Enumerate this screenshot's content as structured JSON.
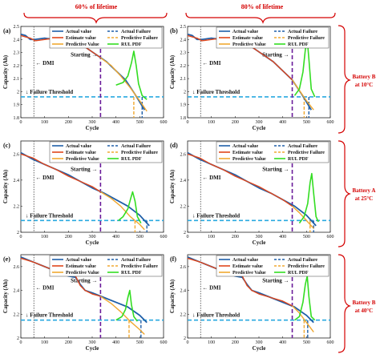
{
  "header": {
    "left": "60% of lifetime",
    "right": "80% of lifetime"
  },
  "batteries": [
    {
      "label_line1": "Battery B",
      "label_line2": "at 10°C"
    },
    {
      "label_line1": "Battery A",
      "label_line2": "at 25°C"
    },
    {
      "label_line1": "Battery B",
      "label_line2": "at 40°C"
    }
  ],
  "legend": {
    "actual": "Actual value",
    "actual_failure": "Actual Failure",
    "estimate": "Estimate value",
    "predictive_failure": "Predictive Failure",
    "predictive": "Predictive Value",
    "rul_pdf": "RUL PDF"
  },
  "annotations": {
    "dmi": "← DMI",
    "starting": "Starting →",
    "threshold": "↓ Failure Threshold"
  },
  "colors": {
    "actual": "#1f5fa8",
    "estimate": "#e0461b",
    "predictive": "#f0a830",
    "pdf": "#33dd22",
    "threshold": "#29a9e0",
    "starting": "#6a1b9a",
    "dmi": "#666666",
    "red_label": "#d40000"
  },
  "chart_data": [
    {
      "panel": "(a)",
      "type": "line",
      "xlabel": "Cycle",
      "ylabel": "Capacity (Ah)",
      "xlim": [
        0,
        600
      ],
      "ylim": [
        1.8,
        2.5
      ],
      "xticks": [
        0,
        100,
        200,
        300,
        400,
        500,
        600
      ],
      "yticks": [
        1.8,
        1.9,
        2.0,
        2.1,
        2.2,
        2.3,
        2.4,
        2.5
      ],
      "dmi": 55,
      "starting": 335,
      "threshold": 1.96,
      "actual_failure": 510,
      "predictive_failure": 475,
      "actual": {
        "x": [
          0,
          20,
          40,
          60,
          100,
          140,
          180,
          200,
          220,
          250,
          280,
          320,
          360,
          400,
          440,
          480,
          520
        ],
        "y": [
          2.44,
          2.43,
          2.4,
          2.4,
          2.41,
          2.4,
          2.38,
          2.39,
          2.39,
          2.37,
          2.33,
          2.28,
          2.23,
          2.16,
          2.09,
          1.98,
          1.86
        ]
      },
      "estimate": {
        "x": [
          0,
          20,
          40,
          60,
          100,
          140,
          180,
          200,
          220,
          250,
          280,
          320,
          335
        ],
        "y": [
          2.43,
          2.42,
          2.41,
          2.39,
          2.4,
          2.41,
          2.38,
          2.4,
          2.38,
          2.37,
          2.33,
          2.28,
          2.26
        ]
      },
      "predictive": {
        "x": [
          335,
          380,
          420,
          460,
          500,
          530
        ],
        "y": [
          2.26,
          2.2,
          2.12,
          2.03,
          1.93,
          1.85
        ]
      },
      "pdf": {
        "x": [
          400,
          430,
          450,
          465,
          475,
          485,
          495,
          510,
          530
        ],
        "y": [
          2.05,
          2.07,
          2.12,
          2.22,
          2.31,
          2.2,
          2.06,
          1.97,
          1.94
        ]
      }
    },
    {
      "panel": "(b)",
      "type": "line",
      "xlabel": "Cycle",
      "ylabel": "Capacity (Ah)",
      "xlim": [
        0,
        600
      ],
      "ylim": [
        1.8,
        2.5
      ],
      "xticks": [
        0,
        100,
        200,
        300,
        400,
        500,
        600
      ],
      "yticks": [
        1.8,
        1.9,
        2.0,
        2.1,
        2.2,
        2.3,
        2.4,
        2.5
      ],
      "dmi": 55,
      "starting": 440,
      "threshold": 1.96,
      "actual_failure": 510,
      "predictive_failure": 490,
      "actual": {
        "x": [
          0,
          20,
          40,
          60,
          100,
          140,
          180,
          200,
          220,
          250,
          280,
          320,
          360,
          400,
          440,
          480,
          520
        ],
        "y": [
          2.44,
          2.43,
          2.4,
          2.4,
          2.41,
          2.4,
          2.38,
          2.39,
          2.39,
          2.37,
          2.33,
          2.28,
          2.23,
          2.16,
          2.09,
          1.98,
          1.86
        ]
      },
      "estimate": {
        "x": [
          0,
          20,
          40,
          60,
          100,
          140,
          180,
          200,
          220,
          250,
          280,
          320,
          360,
          400,
          440
        ],
        "y": [
          2.43,
          2.42,
          2.41,
          2.39,
          2.4,
          2.41,
          2.38,
          2.4,
          2.38,
          2.37,
          2.33,
          2.28,
          2.23,
          2.16,
          2.09
        ]
      },
      "predictive": {
        "x": [
          440,
          470,
          500,
          530
        ],
        "y": [
          2.09,
          2.01,
          1.93,
          1.86
        ]
      },
      "pdf": {
        "x": [
          450,
          470,
          485,
          495,
          503,
          510,
          520,
          535
        ],
        "y": [
          1.97,
          2.02,
          2.15,
          2.32,
          2.4,
          2.25,
          2.02,
          1.96
        ]
      }
    },
    {
      "panel": "(c)",
      "type": "line",
      "xlabel": "Cycle",
      "ylabel": "Capacity (Ah)",
      "xlim": [
        0,
        600
      ],
      "ylim": [
        2.0,
        2.7
      ],
      "xticks": [
        0,
        100,
        200,
        300,
        400,
        500,
        600
      ],
      "yticks": [
        2.0,
        2.2,
        2.4,
        2.6
      ],
      "dmi": 55,
      "starting": 335,
      "threshold": 2.09,
      "actual_failure": 530,
      "predictive_failure": 480,
      "actual": {
        "x": [
          0,
          50,
          100,
          150,
          200,
          250,
          300,
          350,
          400,
          450,
          500,
          540
        ],
        "y": [
          2.61,
          2.56,
          2.52,
          2.48,
          2.44,
          2.39,
          2.34,
          2.3,
          2.25,
          2.2,
          2.13,
          2.05
        ]
      },
      "estimate": {
        "x": [
          0,
          50,
          100,
          150,
          200,
          250,
          300,
          335
        ],
        "y": [
          2.6,
          2.57,
          2.52,
          2.48,
          2.43,
          2.39,
          2.35,
          2.31
        ]
      },
      "predictive": {
        "x": [
          335,
          380,
          420,
          460,
          500,
          520
        ],
        "y": [
          2.31,
          2.26,
          2.2,
          2.12,
          2.06,
          2.02
        ]
      },
      "pdf": {
        "x": [
          410,
          430,
          450,
          462,
          470,
          480,
          490,
          505
        ],
        "y": [
          2.09,
          2.12,
          2.18,
          2.26,
          2.31,
          2.24,
          2.12,
          2.07
        ]
      }
    },
    {
      "panel": "(d)",
      "type": "line",
      "xlabel": "Cycle",
      "ylabel": "Capacity (Ah)",
      "xlim": [
        0,
        600
      ],
      "ylim": [
        2.0,
        2.7
      ],
      "xticks": [
        0,
        100,
        200,
        300,
        400,
        500,
        600
      ],
      "yticks": [
        2.0,
        2.2,
        2.4,
        2.6
      ],
      "dmi": 55,
      "starting": 440,
      "threshold": 2.09,
      "actual_failure": 530,
      "predictive_failure": 515,
      "actual": {
        "x": [
          0,
          50,
          100,
          150,
          200,
          250,
          300,
          350,
          400,
          450,
          500,
          540
        ],
        "y": [
          2.61,
          2.56,
          2.52,
          2.48,
          2.44,
          2.39,
          2.34,
          2.3,
          2.25,
          2.2,
          2.13,
          2.05
        ]
      },
      "estimate": {
        "x": [
          0,
          50,
          100,
          150,
          200,
          250,
          300,
          350,
          400,
          440
        ],
        "y": [
          2.6,
          2.57,
          2.52,
          2.48,
          2.43,
          2.39,
          2.35,
          2.3,
          2.25,
          2.2
        ]
      },
      "predictive": {
        "x": [
          440,
          470,
          500,
          530
        ],
        "y": [
          2.2,
          2.15,
          2.09,
          2.03
        ]
      },
      "pdf": {
        "x": [
          470,
          490,
          505,
          515,
          522,
          530,
          540,
          550
        ],
        "y": [
          2.07,
          2.12,
          2.22,
          2.38,
          2.45,
          2.3,
          2.12,
          2.08
        ]
      }
    },
    {
      "panel": "(e)",
      "type": "line",
      "xlabel": "Cycle",
      "ylabel": "Capacity (Ah)",
      "xlim": [
        0,
        600
      ],
      "ylim": [
        2.0,
        2.7
      ],
      "xticks": [
        0,
        100,
        200,
        300,
        400,
        500,
        600
      ],
      "yticks": [
        2.0,
        2.2,
        2.4,
        2.6
      ],
      "dmi": 55,
      "starting": 335,
      "threshold": 2.15,
      "actual_failure": 505,
      "predictive_failure": 455,
      "actual": {
        "x": [
          0,
          50,
          100,
          150,
          200,
          230,
          250,
          270,
          300,
          350,
          400,
          450,
          500,
          530
        ],
        "y": [
          2.68,
          2.64,
          2.6,
          2.56,
          2.52,
          2.51,
          2.45,
          2.4,
          2.38,
          2.34,
          2.3,
          2.26,
          2.19,
          2.13
        ]
      },
      "estimate": {
        "x": [
          0,
          50,
          100,
          150,
          200,
          230,
          250,
          270,
          300,
          335
        ],
        "y": [
          2.67,
          2.64,
          2.6,
          2.56,
          2.53,
          2.52,
          2.44,
          2.4,
          2.37,
          2.35
        ]
      },
      "predictive": {
        "x": [
          335,
          380,
          420,
          460,
          500,
          520
        ],
        "y": [
          2.35,
          2.29,
          2.22,
          2.14,
          2.07,
          2.03
        ]
      },
      "pdf": {
        "x": [
          400,
          425,
          440,
          450,
          458,
          465,
          475,
          490
        ],
        "y": [
          2.15,
          2.18,
          2.24,
          2.34,
          2.4,
          2.28,
          2.18,
          2.14
        ]
      }
    },
    {
      "panel": "(f)",
      "type": "line",
      "xlabel": "Cycle",
      "ylabel": "Capacity (Ah)",
      "xlim": [
        0,
        600
      ],
      "ylim": [
        2.0,
        2.7
      ],
      "xticks": [
        0,
        100,
        200,
        300,
        400,
        500,
        600
      ],
      "yticks": [
        2.0,
        2.2,
        2.4,
        2.6
      ],
      "dmi": 55,
      "starting": 440,
      "threshold": 2.15,
      "actual_failure": 505,
      "predictive_failure": 490,
      "actual": {
        "x": [
          0,
          50,
          100,
          150,
          200,
          230,
          250,
          270,
          300,
          350,
          400,
          450,
          500,
          530
        ],
        "y": [
          2.68,
          2.64,
          2.6,
          2.56,
          2.52,
          2.51,
          2.45,
          2.4,
          2.38,
          2.34,
          2.3,
          2.26,
          2.19,
          2.13
        ]
      },
      "estimate": {
        "x": [
          0,
          50,
          100,
          150,
          200,
          230,
          250,
          270,
          300,
          350,
          400,
          440
        ],
        "y": [
          2.67,
          2.64,
          2.6,
          2.56,
          2.53,
          2.52,
          2.44,
          2.4,
          2.37,
          2.34,
          2.31,
          2.27
        ]
      },
      "predictive": {
        "x": [
          440,
          470,
          500,
          530
        ],
        "y": [
          2.27,
          2.21,
          2.13,
          2.05
        ]
      },
      "pdf": {
        "x": [
          450,
          470,
          485,
          495,
          503,
          510,
          520,
          535
        ],
        "y": [
          2.15,
          2.18,
          2.3,
          2.45,
          2.52,
          2.35,
          2.18,
          2.15
        ]
      }
    }
  ]
}
